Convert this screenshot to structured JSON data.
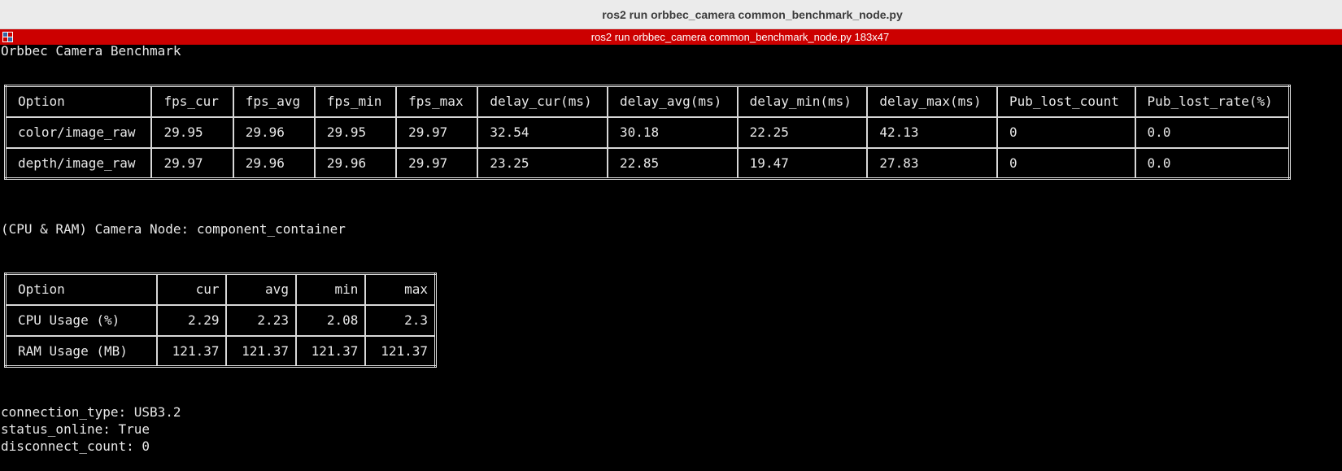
{
  "window": {
    "title": "ros2 run orbbec_camera common_benchmark_node.py"
  },
  "terminal": {
    "title": "ros2 run orbbec_camera common_benchmark_node.py 183x47",
    "heading": "Orbbec Camera Benchmark",
    "node_line": "(CPU & RAM) Camera Node: component_container",
    "status_lines": [
      "connection_type: USB3.2",
      "status_online: True",
      "disconnect_count: 0"
    ]
  },
  "benchmark_table": {
    "headers": [
      "Option",
      "fps_cur",
      "fps_avg",
      "fps_min",
      "fps_max",
      "delay_cur(ms)",
      "delay_avg(ms)",
      "delay_min(ms)",
      "delay_max(ms)",
      "Pub_lost_count",
      "Pub_lost_rate(%)"
    ],
    "rows": [
      [
        "color/image_raw",
        "29.95",
        "29.96",
        "29.95",
        "29.97",
        "32.54",
        "30.18",
        "22.25",
        "42.13",
        "0",
        "0.0"
      ],
      [
        "depth/image_raw",
        "29.97",
        "29.96",
        "29.96",
        "29.97",
        "23.25",
        "22.85",
        "19.47",
        "27.83",
        "0",
        "0.0"
      ]
    ]
  },
  "resource_table": {
    "headers": [
      "Option",
      "cur",
      "avg",
      "min",
      "max"
    ],
    "rows": [
      [
        "CPU Usage (%)",
        "2.29",
        "2.23",
        "2.08",
        "2.3"
      ],
      [
        "RAM Usage (MB)",
        "121.37",
        "121.37",
        "121.37",
        "121.37"
      ]
    ]
  },
  "colors": {
    "terminal_bg": "#000000",
    "terminal_fg": "#e8e8e8",
    "titlebar_active": "#cc0000",
    "window_titlebar": "#ebebeb"
  },
  "icons": {
    "terminal_titlebar": "terminal-app-icon"
  }
}
